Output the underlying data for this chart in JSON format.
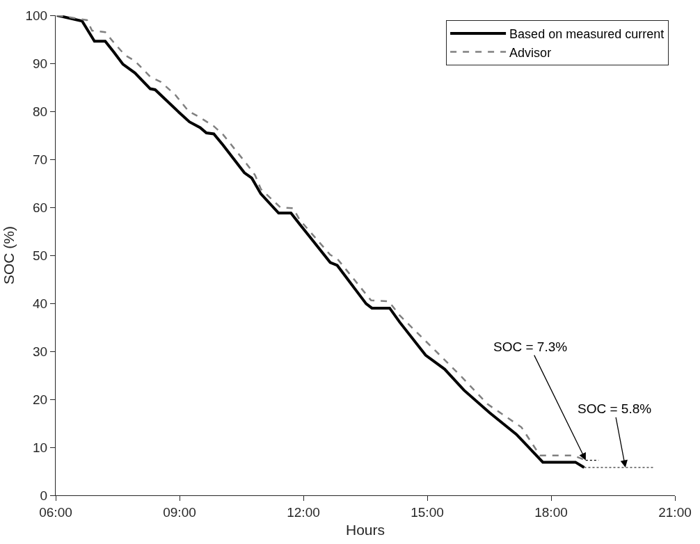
{
  "chart_data": {
    "type": "line",
    "xlabel": "Hours",
    "ylabel": "SOC (%)",
    "xlim": [
      6,
      21
    ],
    "xticks": [
      {
        "value": 6,
        "label": "06:00"
      },
      {
        "value": 9,
        "label": "09:00"
      },
      {
        "value": 12,
        "label": "12:00"
      },
      {
        "value": 15,
        "label": "15:00"
      },
      {
        "value": 18,
        "label": "18:00"
      },
      {
        "value": 21,
        "label": "21:00"
      }
    ],
    "ylim": [
      0,
      100
    ],
    "yticks": [
      0,
      10,
      20,
      30,
      40,
      50,
      60,
      70,
      80,
      90,
      100
    ],
    "legend": "top right",
    "marker": "none",
    "series": [
      {
        "name": "Based on measured current",
        "color": "#000000",
        "line_style": "solid",
        "x": [
          6.03,
          6.64,
          6.94,
          7.2,
          7.42,
          7.63,
          7.92,
          8.29,
          8.41,
          9.01,
          9.24,
          9.5,
          9.65,
          9.83,
          10.05,
          10.57,
          10.75,
          10.97,
          11.4,
          11.7,
          11.91,
          12.18,
          12.65,
          12.82,
          13.52,
          13.66,
          14.09,
          14.33,
          14.96,
          15.42,
          15.89,
          16.51,
          17.16,
          17.38,
          17.8,
          18.59,
          18.8
        ],
        "values": [
          100,
          98.8,
          94.6,
          94.6,
          92.2,
          89.8,
          88.0,
          84.7,
          84.5,
          79.6,
          77.8,
          76.6,
          75.5,
          75.3,
          73.0,
          67.2,
          66.1,
          62.8,
          58.8,
          58.8,
          56.5,
          53.6,
          48.5,
          47.9,
          39.9,
          39.0,
          39.0,
          36.1,
          29.2,
          26.3,
          21.9,
          17.2,
          12.7,
          10.7,
          6.9,
          6.9,
          5.8
        ]
      },
      {
        "name": "Advisor",
        "color": "#808080",
        "line_style": "dashed",
        "x": [
          6.03,
          6.76,
          6.88,
          7.2,
          7.42,
          7.68,
          7.92,
          8.29,
          8.55,
          8.89,
          9.22,
          9.48,
          9.83,
          10.05,
          10.62,
          10.83,
          10.97,
          11.44,
          11.75,
          11.91,
          12.65,
          12.82,
          13.64,
          14.07,
          14.33,
          15.13,
          15.82,
          16.46,
          17.28,
          17.73,
          18.54,
          18.84
        ],
        "values": [
          100,
          99,
          96.8,
          96.5,
          94.2,
          91.7,
          90.5,
          87.2,
          86.1,
          83.5,
          80.0,
          78.8,
          76.9,
          75.2,
          69.1,
          66.7,
          63.8,
          60.0,
          59.8,
          57.4,
          50.1,
          49.3,
          40.6,
          40.4,
          37.5,
          30.7,
          24.8,
          19.0,
          14.2,
          8.3,
          8.3,
          7.3
        ]
      },
      {
        "color": "#000000",
        "line_style": "dotted",
        "x": [
          18.84,
          19.15
        ],
        "values": [
          7.3,
          7.3
        ]
      },
      {
        "color": "#000000",
        "line_style": "dotted",
        "x": [
          18.8,
          20.48
        ],
        "values": [
          5.8,
          5.8
        ]
      }
    ],
    "annotations": [
      {
        "text": "SOC = 7.3%",
        "x": 18.84,
        "y": 7.3
      },
      {
        "text": "SOC = 5.8%",
        "x": 19.8,
        "y": 5.8
      }
    ]
  }
}
